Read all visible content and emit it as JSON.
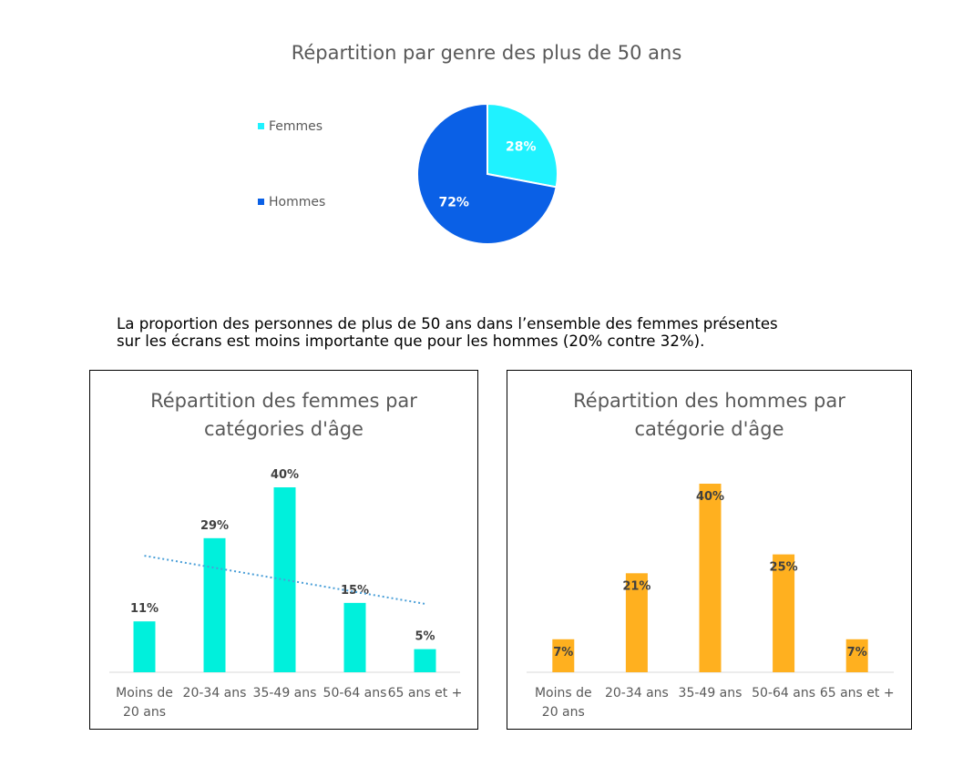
{
  "paragraph": {
    "line1": "La proportion des personnes de plus de 50 ans dans l’ensemble des femmes présentes",
    "line2": "sur les écrans est moins importante que pour les hommes (20% contre 32%)."
  },
  "chart_data": [
    {
      "type": "pie",
      "title": "Répartition par genre des plus de 50 ans",
      "labels": [
        "Femmes",
        "Hommes"
      ],
      "values": [
        28,
        72
      ],
      "data_labels": [
        "28%",
        "72%"
      ],
      "colors": [
        "#1FF2FF",
        "#0A60E6"
      ],
      "legend": "left"
    },
    {
      "type": "bar",
      "title_lines": [
        "Répartition des femmes par",
        "catégories d'âge"
      ],
      "categories": [
        [
          "Moins de",
          "20 ans"
        ],
        [
          "20-34 ans"
        ],
        [
          "35-49 ans"
        ],
        [
          "50-64 ans"
        ],
        [
          "65 ans et +"
        ]
      ],
      "values": [
        11,
        29,
        40,
        15,
        5
      ],
      "data_labels": [
        "11%",
        "29%",
        "40%",
        "15%",
        "5%"
      ],
      "color": "#00F0DC",
      "trendline": "linear",
      "trend_color": "#4A9FD8",
      "ylim": [
        0,
        40
      ]
    },
    {
      "type": "bar",
      "title_lines": [
        "Répartition des hommes par",
        "catégorie d'âge"
      ],
      "categories": [
        [
          "Moins de",
          "20 ans"
        ],
        [
          "20-34 ans"
        ],
        [
          "35-49 ans"
        ],
        [
          "50-64 ans"
        ],
        [
          "65 ans et +"
        ]
      ],
      "values": [
        7,
        21,
        40,
        25,
        7
      ],
      "data_labels": [
        "7%",
        "21%",
        "40%",
        "25%",
        "7%"
      ],
      "color": "#FFB01F",
      "ylim": [
        0,
        40
      ]
    }
  ]
}
